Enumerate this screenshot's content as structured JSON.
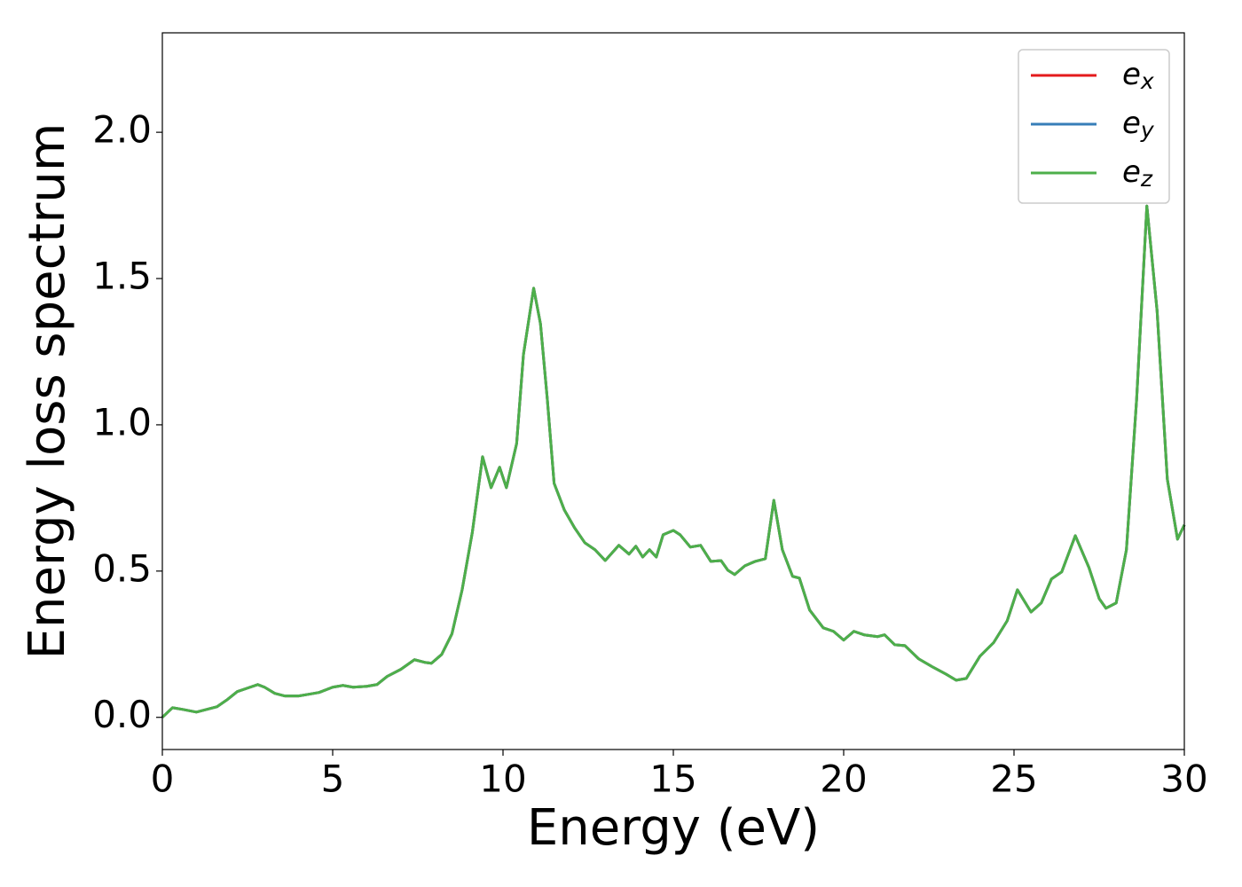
{
  "chart_data": {
    "type": "line",
    "xlabel": "Energy (eV)",
    "ylabel": "Energy loss spectrum",
    "x": [
      0,
      0.3,
      0.6,
      1.0,
      1.3,
      1.6,
      1.9,
      2.2,
      2.5,
      2.8,
      3.0,
      3.3,
      3.6,
      4.0,
      4.3,
      4.6,
      5.0,
      5.3,
      5.6,
      6.0,
      6.3,
      6.6,
      7.0,
      7.4,
      7.7,
      7.9,
      8.2,
      8.5,
      8.8,
      9.1,
      9.4,
      9.65,
      9.9,
      10.1,
      10.4,
      10.6,
      10.9,
      11.1,
      11.3,
      11.5,
      11.8,
      12.1,
      12.4,
      12.7,
      13.0,
      13.4,
      13.7,
      13.9,
      14.1,
      14.3,
      14.5,
      14.7,
      15.0,
      15.2,
      15.5,
      15.8,
      16.1,
      16.4,
      16.6,
      16.8,
      17.1,
      17.4,
      17.7,
      17.95,
      18.2,
      18.5,
      18.7,
      19.0,
      19.4,
      19.7,
      20.0,
      20.3,
      20.6,
      21.0,
      21.2,
      21.5,
      21.8,
      22.2,
      22.6,
      23.0,
      23.3,
      23.6,
      24.0,
      24.4,
      24.8,
      25.1,
      25.5,
      25.8,
      26.1,
      26.4,
      26.8,
      27.2,
      27.5,
      27.7,
      28.0,
      28.3,
      28.6,
      28.9,
      29.2,
      29.5,
      29.8,
      30.0
    ],
    "series": [
      {
        "name": "e_x",
        "color": "#e41a1c",
        "values": [
          0,
          0.033,
          0.027,
          0.018,
          0.027,
          0.036,
          0.06,
          0.088,
          0.1,
          0.112,
          0.103,
          0.082,
          0.073,
          0.073,
          0.079,
          0.085,
          0.103,
          0.109,
          0.103,
          0.106,
          0.112,
          0.14,
          0.164,
          0.197,
          0.188,
          0.185,
          0.215,
          0.285,
          0.436,
          0.633,
          0.891,
          0.785,
          0.855,
          0.785,
          0.936,
          1.24,
          1.467,
          1.345,
          1.088,
          0.8,
          0.709,
          0.648,
          0.597,
          0.573,
          0.536,
          0.588,
          0.558,
          0.585,
          0.548,
          0.573,
          0.548,
          0.624,
          0.639,
          0.624,
          0.582,
          0.588,
          0.533,
          0.536,
          0.503,
          0.488,
          0.518,
          0.533,
          0.542,
          0.742,
          0.573,
          0.482,
          0.476,
          0.367,
          0.306,
          0.294,
          0.264,
          0.294,
          0.282,
          0.276,
          0.282,
          0.248,
          0.245,
          0.2,
          0.173,
          0.148,
          0.127,
          0.133,
          0.209,
          0.255,
          0.33,
          0.436,
          0.36,
          0.391,
          0.473,
          0.497,
          0.621,
          0.512,
          0.406,
          0.373,
          0.391,
          0.573,
          1.088,
          1.748,
          1.39,
          0.815,
          0.609,
          0.658
        ]
      },
      {
        "name": "e_y",
        "color": "#377eb8",
        "values": [
          0,
          0.033,
          0.027,
          0.018,
          0.027,
          0.036,
          0.06,
          0.088,
          0.1,
          0.112,
          0.103,
          0.082,
          0.073,
          0.073,
          0.079,
          0.085,
          0.103,
          0.109,
          0.103,
          0.106,
          0.112,
          0.14,
          0.164,
          0.197,
          0.188,
          0.185,
          0.215,
          0.285,
          0.436,
          0.633,
          0.891,
          0.785,
          0.855,
          0.785,
          0.936,
          1.24,
          1.467,
          1.345,
          1.088,
          0.8,
          0.709,
          0.648,
          0.597,
          0.573,
          0.536,
          0.588,
          0.558,
          0.585,
          0.548,
          0.573,
          0.548,
          0.624,
          0.639,
          0.624,
          0.582,
          0.588,
          0.533,
          0.536,
          0.503,
          0.488,
          0.518,
          0.533,
          0.542,
          0.742,
          0.573,
          0.482,
          0.476,
          0.367,
          0.306,
          0.294,
          0.264,
          0.294,
          0.282,
          0.276,
          0.282,
          0.248,
          0.245,
          0.2,
          0.173,
          0.148,
          0.127,
          0.133,
          0.209,
          0.255,
          0.33,
          0.436,
          0.36,
          0.391,
          0.473,
          0.497,
          0.621,
          0.512,
          0.406,
          0.373,
          0.391,
          0.573,
          1.088,
          1.748,
          1.39,
          0.815,
          0.609,
          0.658
        ]
      },
      {
        "name": "e_z",
        "color": "#4daf4a",
        "values": [
          0,
          0.033,
          0.027,
          0.018,
          0.027,
          0.036,
          0.06,
          0.088,
          0.1,
          0.112,
          0.103,
          0.082,
          0.073,
          0.073,
          0.079,
          0.085,
          0.103,
          0.109,
          0.103,
          0.106,
          0.112,
          0.14,
          0.164,
          0.197,
          0.188,
          0.185,
          0.215,
          0.285,
          0.436,
          0.633,
          0.891,
          0.785,
          0.855,
          0.785,
          0.936,
          1.24,
          1.467,
          1.345,
          1.088,
          0.8,
          0.709,
          0.648,
          0.597,
          0.573,
          0.536,
          0.588,
          0.558,
          0.585,
          0.548,
          0.573,
          0.548,
          0.624,
          0.639,
          0.624,
          0.582,
          0.588,
          0.533,
          0.536,
          0.503,
          0.488,
          0.518,
          0.533,
          0.542,
          0.742,
          0.573,
          0.482,
          0.476,
          0.367,
          0.306,
          0.294,
          0.264,
          0.294,
          0.282,
          0.276,
          0.282,
          0.248,
          0.245,
          0.2,
          0.173,
          0.148,
          0.127,
          0.133,
          0.209,
          0.255,
          0.33,
          0.436,
          0.36,
          0.391,
          0.473,
          0.497,
          0.621,
          0.512,
          0.406,
          0.373,
          0.391,
          0.573,
          1.088,
          1.748,
          1.39,
          0.815,
          0.609,
          0.658
        ]
      }
    ],
    "xlim": [
      0,
      30
    ],
    "xticks": [
      0,
      5,
      10,
      15,
      20,
      25,
      30
    ],
    "ylim": [
      -0.11,
      2.34
    ],
    "yticks": [
      {
        "value": 0,
        "label": "0.0"
      },
      0.5,
      {
        "value": 1,
        "label": "1.0"
      },
      1.5,
      {
        "value": 2,
        "label": "2.0"
      }
    ],
    "legend": "upper right",
    "grid": false
  }
}
